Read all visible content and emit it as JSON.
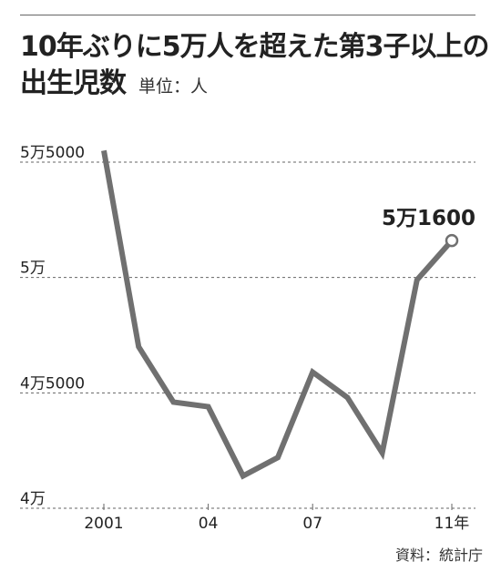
{
  "header": {
    "title_line1": "10年ぶりに5万人を超えた第3子以上の",
    "title_line2": "出生児数",
    "unit": "単位：人"
  },
  "source": "資料：統計庁",
  "colors": {
    "line": "#707070",
    "grid": "#666666",
    "text": "#222222"
  },
  "chart_data": {
    "type": "line",
    "title": "10年ぶりに5万人を超えた第3子以上の出生児数",
    "unit": "単位：人",
    "x": [
      "2001",
      "2002",
      "2003",
      "2004",
      "2005",
      "2006",
      "2007",
      "2008",
      "2009",
      "2010",
      "2011"
    ],
    "x_tick_labels": [
      {
        "x": "2001",
        "label": "2001"
      },
      {
        "x": "2004",
        "label": "04"
      },
      {
        "x": "2007",
        "label": "07"
      },
      {
        "x": "2011",
        "label": "11年"
      }
    ],
    "series": [
      {
        "values": [
          55500,
          47000,
          44600,
          44400,
          41400,
          42200,
          45900,
          44800,
          42400,
          49900,
          51600
        ]
      }
    ],
    "y_ticks": [
      {
        "value": 40000,
        "label": "4万"
      },
      {
        "value": 45000,
        "label": "4万5000"
      },
      {
        "value": 50000,
        "label": "5万"
      },
      {
        "value": 55000,
        "label": "5万5000"
      }
    ],
    "ylim": [
      40000,
      55000
    ],
    "data_labels": [
      {
        "x": "2011",
        "label": "5万1600"
      }
    ],
    "grid": "horizontal dashed",
    "legend": "none"
  }
}
